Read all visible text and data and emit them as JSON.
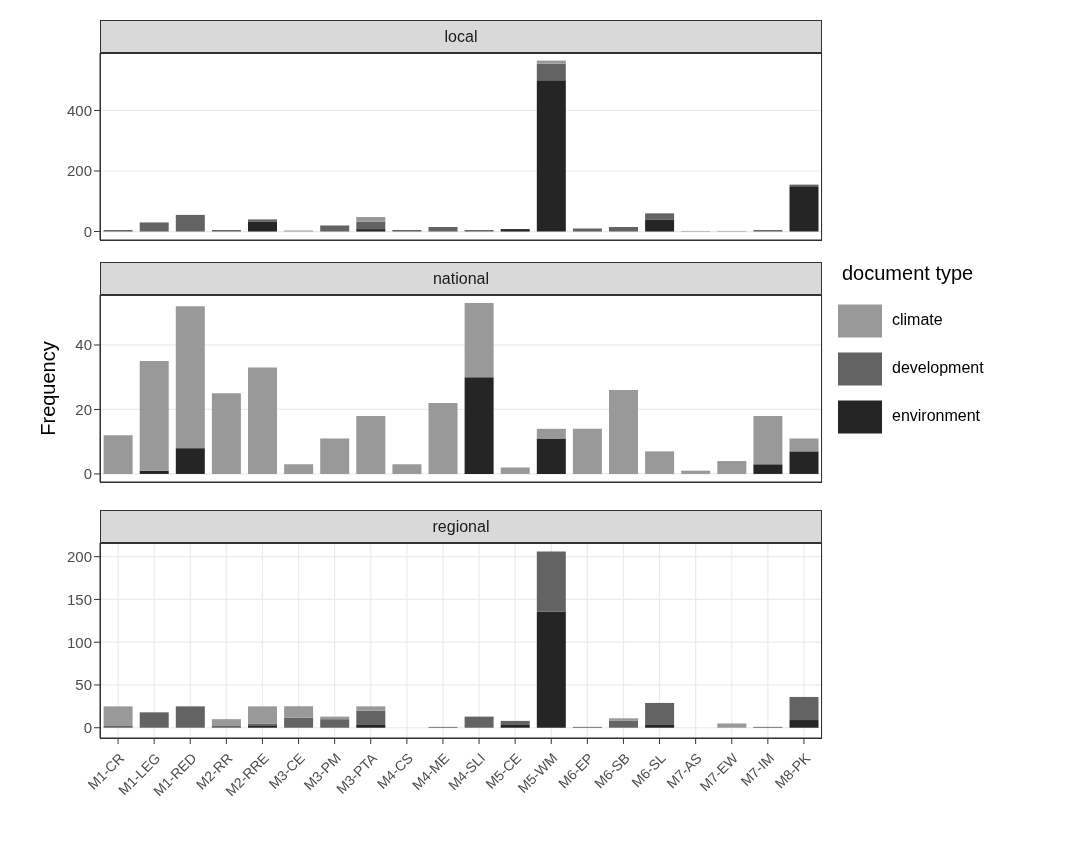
{
  "chart_data": [
    {
      "type": "bar",
      "title": "local",
      "stacked": true,
      "grid": true,
      "tick_labels": "y",
      "legend": "right",
      "legend_title": "document type",
      "categories": [
        null,
        null,
        null,
        null,
        null,
        null,
        null,
        null,
        null,
        null,
        null,
        null,
        null,
        null,
        null,
        null,
        null,
        null,
        null,
        null
      ],
      "series": [
        {
          "name": "environment",
          "color": "#252525",
          "values": [
            0,
            0,
            0,
            0,
            32,
            0,
            0,
            8,
            0,
            0,
            0,
            8,
            500,
            0,
            0,
            40,
            0,
            0,
            0,
            150
          ]
        },
        {
          "name": "development",
          "color": "#636363",
          "values": [
            5,
            30,
            55,
            5,
            8,
            0,
            20,
            25,
            5,
            15,
            5,
            null,
            55,
            10,
            15,
            20,
            0,
            0,
            5,
            5
          ]
        },
        {
          "name": "climate",
          "color": "#999999",
          "values": [
            0,
            0,
            0,
            0,
            0,
            3,
            0,
            15,
            0,
            0,
            0,
            0,
            10,
            0,
            0,
            0,
            2,
            2,
            0,
            0
          ]
        }
      ],
      "ylim": [
        -28,
        590
      ],
      "yticks": [
        0,
        200,
        400
      ]
    },
    {
      "type": "bar",
      "title": "national",
      "ylabel": "Frequency",
      "stacked": true,
      "grid": true,
      "tick_labels": "y",
      "categories": [
        null,
        null,
        null,
        null,
        null,
        null,
        null,
        null,
        null,
        null,
        null,
        null,
        null,
        null,
        null,
        null,
        null,
        null,
        null,
        null
      ],
      "series": [
        {
          "color": "#252525",
          "values": [
            0,
            1,
            8,
            0,
            0,
            0,
            0,
            0,
            0,
            0,
            30,
            0,
            11,
            0,
            0,
            0,
            0,
            0,
            3,
            7
          ]
        },
        {
          "color": "#999999",
          "values": [
            12,
            34,
            44,
            25,
            33,
            3,
            11,
            18,
            3,
            22,
            23,
            2,
            3,
            14,
            26,
            7,
            1,
            4,
            15,
            4
          ]
        }
      ],
      "ylim": [
        -2.5,
        55.5
      ],
      "yticks": [
        0,
        20,
        40
      ]
    },
    {
      "type": "bar",
      "title": "regional",
      "stacked": true,
      "grid": true,
      "categories": [
        "M1-CR",
        "M1-LEG",
        "M1-RED",
        "M2-RR",
        "M2-RRE",
        "M3-CE",
        "M3-PM",
        "M3-PTA",
        "M4-CS",
        "M4-ME",
        "M4-SLI",
        "M5-CE",
        "M5-WM",
        "M6-EP",
        "M6-SB",
        "M6-SL",
        "M7-AS",
        "M7-EW",
        "M7-IM",
        "M8-PK"
      ],
      "series": [
        {
          "color": "#252525",
          "values": [
            0,
            0,
            0,
            0,
            2,
            0,
            0,
            4,
            0,
            0,
            0,
            4,
            136,
            0,
            0,
            4,
            0,
            0,
            0,
            9
          ]
        },
        {
          "color": "#636363",
          "values": [
            2,
            18,
            25,
            2,
            3,
            12,
            10,
            16,
            0,
            1,
            13,
            4,
            70,
            1,
            8,
            25,
            0,
            0,
            1,
            27
          ]
        },
        {
          "color": "#999999",
          "values": [
            23,
            0,
            0,
            8,
            20,
            13,
            3,
            5,
            0,
            0,
            0,
            0,
            0,
            0,
            3,
            0,
            0,
            5,
            0,
            0
          ]
        }
      ],
      "ylim": [
        -12,
        216
      ],
      "yticks": [
        0,
        50,
        100,
        150,
        200
      ]
    }
  ]
}
